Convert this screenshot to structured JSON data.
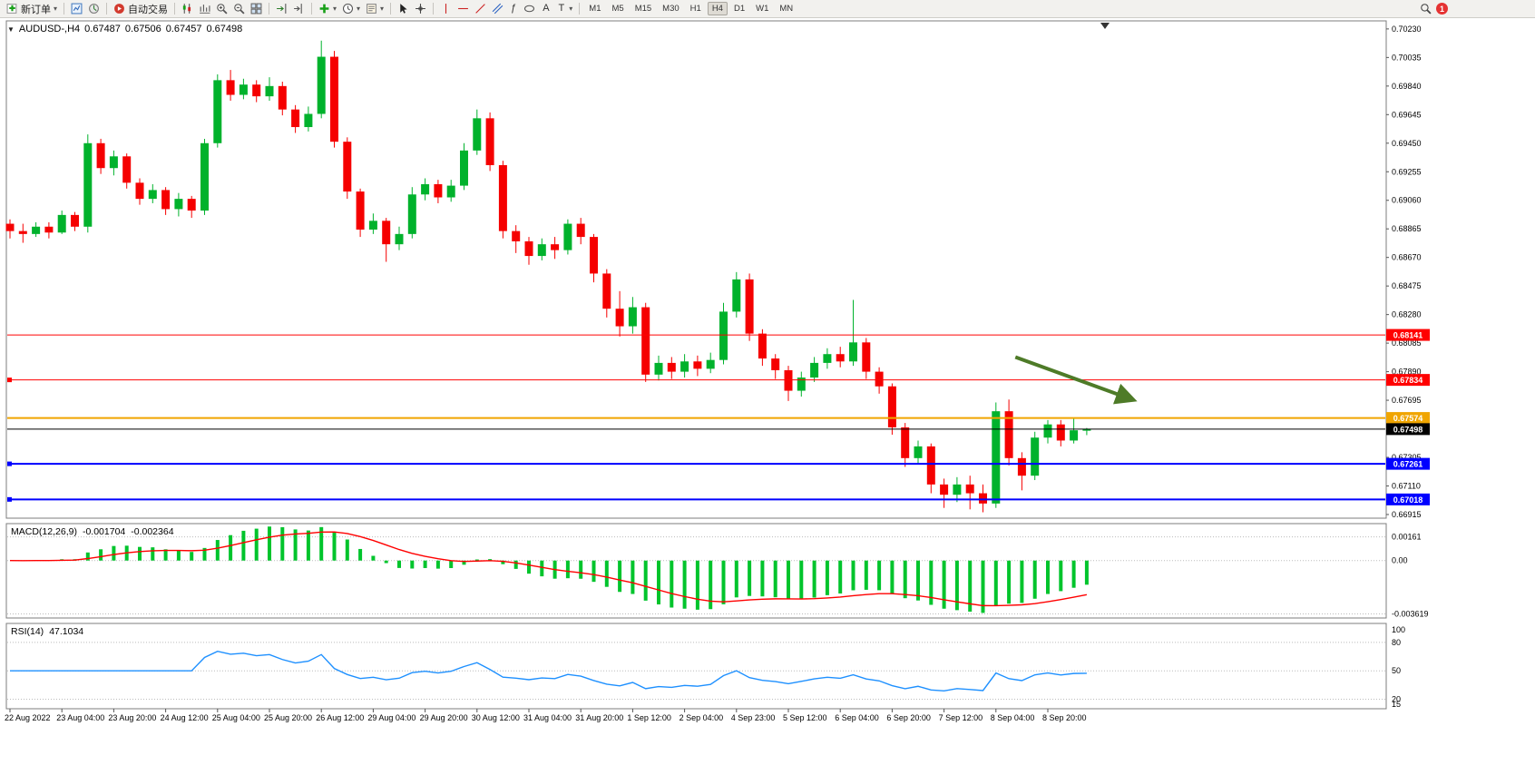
{
  "toolbar": {
    "new_order": "新订单",
    "autotrading": "自动交易",
    "timeframes": [
      "M1",
      "M5",
      "M15",
      "M30",
      "H1",
      "H4",
      "D1",
      "W1",
      "MN"
    ],
    "active_timeframe": "H4",
    "notification_badge": "1"
  },
  "chart_header": {
    "symbol_period": "AUDUSD-,H4",
    "open": "0.67487",
    "high": "0.67506",
    "low": "0.67457",
    "close": "0.67498"
  },
  "indicators": {
    "macd": {
      "label": "MACD(12,26,9)",
      "value_main": "-0.001704",
      "value_signal": "-0.002364"
    },
    "rsi": {
      "label": "RSI(14)",
      "value": "47.1034"
    }
  },
  "chart_data": {
    "type": "candlestick",
    "symbol": "AUDUSD-",
    "timeframe": "H4",
    "ylim": [
      0.6689,
      0.70285
    ],
    "price_axis_ticks": [
      0.7023,
      0.70035,
      0.6984,
      0.69645,
      0.6945,
      0.69255,
      0.6906,
      0.68865,
      0.6867,
      0.68475,
      0.6828,
      0.68085,
      0.6789,
      0.67695,
      0.675,
      0.67305,
      0.6711,
      0.66915
    ],
    "time_axis": [
      {
        "label": "22 Aug 2022",
        "i": 0
      },
      {
        "label": "23 Aug 04:00",
        "i": 4
      },
      {
        "label": "23 Aug 20:00",
        "i": 8
      },
      {
        "label": "24 Aug 12:00",
        "i": 12
      },
      {
        "label": "25 Aug 04:00",
        "i": 16
      },
      {
        "label": "25 Aug 20:00",
        "i": 20
      },
      {
        "label": "26 Aug 12:00",
        "i": 24
      },
      {
        "label": "29 Aug 04:00",
        "i": 28
      },
      {
        "label": "29 Aug 20:00",
        "i": 32
      },
      {
        "label": "30 Aug 12:00",
        "i": 36
      },
      {
        "label": "31 Aug 04:00",
        "i": 40
      },
      {
        "label": "31 Aug 20:00",
        "i": 44
      },
      {
        "label": "1 Sep 12:00",
        "i": 48
      },
      {
        "label": "2 Sep 04:00",
        "i": 52
      },
      {
        "label": "4 Sep 23:00",
        "i": 56
      },
      {
        "label": "5 Sep 12:00",
        "i": 60
      },
      {
        "label": "6 Sep 04:00",
        "i": 64
      },
      {
        "label": "6 Sep 20:00",
        "i": 68
      },
      {
        "label": "7 Sep 12:00",
        "i": 72
      },
      {
        "label": "8 Sep 04:00",
        "i": 76
      },
      {
        "label": "8 Sep 20:00",
        "i": 80
      }
    ],
    "candles": [
      [
        0.689,
        0.6893,
        0.688,
        0.6885
      ],
      [
        0.6885,
        0.689,
        0.6877,
        0.6883
      ],
      [
        0.6883,
        0.6891,
        0.6881,
        0.6888
      ],
      [
        0.6888,
        0.6891,
        0.688,
        0.6884
      ],
      [
        0.6884,
        0.6899,
        0.6883,
        0.6896
      ],
      [
        0.6896,
        0.6898,
        0.6885,
        0.6888
      ],
      [
        0.6888,
        0.6951,
        0.6884,
        0.6945
      ],
      [
        0.6945,
        0.6948,
        0.6924,
        0.6928
      ],
      [
        0.6928,
        0.694,
        0.6923,
        0.6936
      ],
      [
        0.6936,
        0.6938,
        0.6914,
        0.6918
      ],
      [
        0.6918,
        0.6921,
        0.6903,
        0.6907
      ],
      [
        0.6907,
        0.6917,
        0.6904,
        0.6913
      ],
      [
        0.6913,
        0.6915,
        0.6896,
        0.69
      ],
      [
        0.69,
        0.6911,
        0.6895,
        0.6907
      ],
      [
        0.6907,
        0.6909,
        0.6894,
        0.6899
      ],
      [
        0.6899,
        0.6948,
        0.6896,
        0.6945
      ],
      [
        0.6945,
        0.6992,
        0.6942,
        0.6988
      ],
      [
        0.6988,
        0.6995,
        0.6974,
        0.6978
      ],
      [
        0.6978,
        0.6989,
        0.6975,
        0.6985
      ],
      [
        0.6985,
        0.6988,
        0.6973,
        0.6977
      ],
      [
        0.6977,
        0.699,
        0.6974,
        0.6984
      ],
      [
        0.6984,
        0.6987,
        0.6964,
        0.6968
      ],
      [
        0.6968,
        0.6971,
        0.6952,
        0.6956
      ],
      [
        0.6956,
        0.697,
        0.6953,
        0.6965
      ],
      [
        0.6965,
        0.7015,
        0.6962,
        0.7004
      ],
      [
        0.7004,
        0.7008,
        0.6942,
        0.6946
      ],
      [
        0.6946,
        0.6949,
        0.6907,
        0.6912
      ],
      [
        0.6912,
        0.6914,
        0.6881,
        0.6886
      ],
      [
        0.6886,
        0.6897,
        0.6883,
        0.6892
      ],
      [
        0.6892,
        0.6894,
        0.6864,
        0.6876
      ],
      [
        0.6876,
        0.6888,
        0.6872,
        0.6883
      ],
      [
        0.6883,
        0.6915,
        0.688,
        0.691
      ],
      [
        0.691,
        0.6921,
        0.6906,
        0.6917
      ],
      [
        0.6917,
        0.692,
        0.6904,
        0.6908
      ],
      [
        0.6908,
        0.692,
        0.6905,
        0.6916
      ],
      [
        0.6916,
        0.6945,
        0.6913,
        0.694
      ],
      [
        0.694,
        0.6968,
        0.6937,
        0.6962
      ],
      [
        0.6962,
        0.6966,
        0.6926,
        0.693
      ],
      [
        0.693,
        0.6933,
        0.688,
        0.6885
      ],
      [
        0.6885,
        0.6889,
        0.687,
        0.6878
      ],
      [
        0.6878,
        0.6881,
        0.6862,
        0.6868
      ],
      [
        0.6868,
        0.688,
        0.6865,
        0.6876
      ],
      [
        0.6876,
        0.6881,
        0.6866,
        0.6872
      ],
      [
        0.6872,
        0.6893,
        0.6869,
        0.689
      ],
      [
        0.689,
        0.6894,
        0.6876,
        0.6881
      ],
      [
        0.6881,
        0.6883,
        0.685,
        0.6856
      ],
      [
        0.6856,
        0.6859,
        0.6826,
        0.6832
      ],
      [
        0.6832,
        0.6844,
        0.6813,
        0.682
      ],
      [
        0.682,
        0.684,
        0.6815,
        0.6833
      ],
      [
        0.6833,
        0.6836,
        0.6782,
        0.6787
      ],
      [
        0.6787,
        0.68,
        0.6783,
        0.6795
      ],
      [
        0.6795,
        0.6799,
        0.6784,
        0.6789
      ],
      [
        0.6789,
        0.6801,
        0.6785,
        0.6796
      ],
      [
        0.6796,
        0.68,
        0.6786,
        0.6791
      ],
      [
        0.6791,
        0.6802,
        0.6788,
        0.6797
      ],
      [
        0.6797,
        0.6836,
        0.6794,
        0.683
      ],
      [
        0.683,
        0.6857,
        0.6826,
        0.6852
      ],
      [
        0.6852,
        0.6856,
        0.681,
        0.6815
      ],
      [
        0.6815,
        0.6818,
        0.6793,
        0.6798
      ],
      [
        0.6798,
        0.6801,
        0.6784,
        0.679
      ],
      [
        0.679,
        0.6793,
        0.6769,
        0.6776
      ],
      [
        0.6776,
        0.6789,
        0.6772,
        0.6785
      ],
      [
        0.6785,
        0.6799,
        0.6782,
        0.6795
      ],
      [
        0.6795,
        0.6805,
        0.6791,
        0.6801
      ],
      [
        0.6801,
        0.6806,
        0.6792,
        0.6796
      ],
      [
        0.6796,
        0.6838,
        0.6793,
        0.6809
      ],
      [
        0.6809,
        0.6812,
        0.6784,
        0.6789
      ],
      [
        0.6789,
        0.6792,
        0.6774,
        0.6779
      ],
      [
        0.6779,
        0.6781,
        0.6746,
        0.6751
      ],
      [
        0.6751,
        0.6754,
        0.6724,
        0.673
      ],
      [
        0.673,
        0.6742,
        0.6726,
        0.6738
      ],
      [
        0.6738,
        0.674,
        0.6706,
        0.6712
      ],
      [
        0.6712,
        0.6716,
        0.6696,
        0.6705
      ],
      [
        0.6705,
        0.6717,
        0.67,
        0.6712
      ],
      [
        0.6712,
        0.6718,
        0.6695,
        0.6706
      ],
      [
        0.6706,
        0.6712,
        0.6693,
        0.6699
      ],
      [
        0.6699,
        0.6768,
        0.6696,
        0.6762
      ],
      [
        0.6762,
        0.677,
        0.6725,
        0.673
      ],
      [
        0.673,
        0.6734,
        0.6708,
        0.6718
      ],
      [
        0.6718,
        0.6748,
        0.6715,
        0.6744
      ],
      [
        0.6744,
        0.6756,
        0.674,
        0.6753
      ],
      [
        0.6753,
        0.6756,
        0.6738,
        0.6742
      ],
      [
        0.6742,
        0.6757,
        0.674,
        0.6749
      ],
      [
        0.67487,
        0.67506,
        0.67457,
        0.67498
      ]
    ],
    "colors": {
      "up": "#00B22C",
      "down": "#F50000",
      "macd_bar": "#00C42C",
      "macd_signal": "#FF0000",
      "rsi_line": "#1E90FF",
      "arrow": "#4E7B28"
    },
    "hlines": [
      {
        "price": 0.68141,
        "label": "0.68141",
        "color": "#FF0000",
        "width": 1,
        "handle": false
      },
      {
        "price": 0.67834,
        "label": "0.67834",
        "color": "#FF0000",
        "width": 1,
        "handle": true
      },
      {
        "price": 0.67574,
        "label": "0.67574",
        "color": "#F0A500",
        "width": 2,
        "handle": false
      },
      {
        "price": 0.67498,
        "label": "0.67498",
        "color": "#000000",
        "width": 1,
        "handle": false
      },
      {
        "price": 0.67261,
        "label": "0.67261",
        "color": "#0000FF",
        "width": 2,
        "handle": true
      },
      {
        "price": 0.67018,
        "label": "0.67018",
        "color": "#0000FF",
        "width": 2,
        "handle": true
      }
    ],
    "arrow": {
      "i1": 77.5,
      "p1": 0.6799,
      "i2": 86.5,
      "p2": 0.677,
      "width": 4
    },
    "macd_panel": {
      "params": [
        12,
        26,
        9
      ],
      "axis_ticks": [
        {
          "label": "0.00161",
          "v": 0.00161
        },
        {
          "label": "0.00",
          "v": 0
        },
        {
          "label": "-0.003619",
          "v": -0.003619
        }
      ]
    },
    "rsi_panel": {
      "period": 14,
      "ylim": [
        10,
        100
      ],
      "levels": [
        80,
        50,
        20
      ],
      "axis_ticks": [
        {
          "label": "100",
          "v": 100
        },
        {
          "label": "80",
          "v": 80
        },
        {
          "label": "50",
          "v": 50
        },
        {
          "label": "20",
          "v": 20
        },
        {
          "label": "15",
          "v": 15
        }
      ]
    }
  }
}
